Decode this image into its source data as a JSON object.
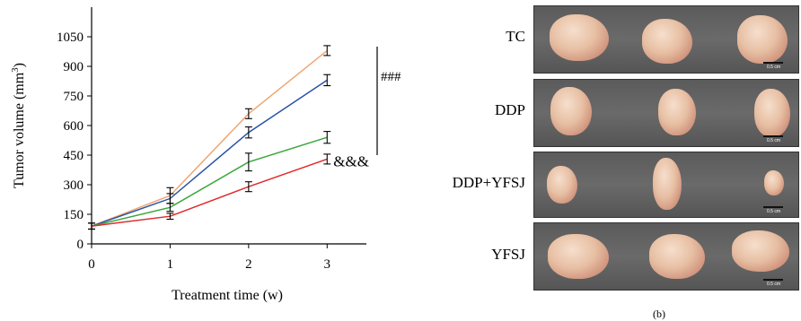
{
  "chart_data": {
    "type": "line",
    "xlabel": "Treatment time (w)",
    "ylabel": "Tumor volume (mm",
    "ylabel_superscript": "3",
    "ylabel_close": ")",
    "x": [
      0,
      1,
      2,
      3
    ],
    "xlim": [
      0,
      3.5
    ],
    "ylim": [
      0,
      1050
    ],
    "x_ticks": [
      "0",
      "1",
      "2",
      "3"
    ],
    "y_ticks": [
      "0",
      "150",
      "300",
      "450",
      "600",
      "750",
      "900",
      "1050"
    ],
    "grid": false,
    "series": [
      {
        "color": "#f0a673",
        "values": [
          90,
          245,
          660,
          980
        ],
        "errors": [
          15,
          40,
          25,
          25
        ]
      },
      {
        "color": "#2953a6",
        "values": [
          90,
          230,
          565,
          830
        ],
        "errors": [
          15,
          25,
          28,
          28
        ]
      },
      {
        "color": "#3aa63a",
        "values": [
          90,
          185,
          415,
          540
        ],
        "errors": [
          15,
          20,
          45,
          30
        ]
      },
      {
        "color": "#e02b2b",
        "values": [
          90,
          140,
          290,
          430
        ],
        "errors": [
          15,
          15,
          25,
          25
        ]
      }
    ],
    "annotations": [
      {
        "text": "###",
        "x": 3.55,
        "y": 850
      },
      {
        "text": "&&&",
        "x": 3.28,
        "y": 420
      }
    ]
  },
  "photo_rows": [
    "TC",
    "DDP",
    "DDP+YFSJ",
    "YFSJ"
  ],
  "scale_label": "0.5 cm",
  "photo_caption": "(b)"
}
